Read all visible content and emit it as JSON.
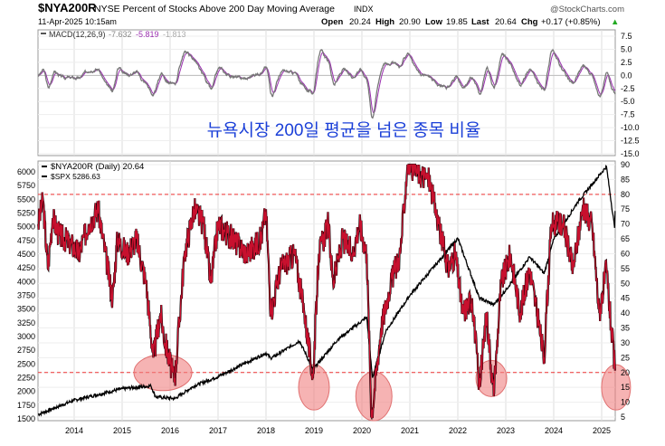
{
  "header": {
    "symbol": "$NYA200R",
    "description": "NYSE Percent of Stocks Above 200 Day Moving Average",
    "exchange": "INDX",
    "brand": "@StockCharts.com",
    "date": "11-Apr-2025 10:15am",
    "open_label": "Open",
    "open": "20.24",
    "high_label": "High",
    "high": "20.90",
    "low_label": "Low",
    "low": "19.85",
    "last_label": "Last",
    "last": "20.64",
    "chg_label": "Chg",
    "chg": "+0.17 (+0.85%)"
  },
  "annotation": "뉴욕시장 200일 평균을 넘은 종목 비율",
  "colors": {
    "nya": "#c8102e",
    "spx": "#000000",
    "macd": "#777777",
    "signal": "#9b30b0",
    "highlight": "#f08080"
  },
  "chart_data": [
    {
      "type": "line",
      "title": "MACD(12,26,9)",
      "legend": {
        "label": "MACD(12,26,9)",
        "macd": "-7.632",
        "signal": "-5.819",
        "hist": "-1.813"
      },
      "ylim": [
        -15,
        7.5
      ],
      "yticks": [
        "7.5",
        "5.0",
        "2.5",
        "0.0",
        "-2.5",
        "-5.0",
        "-7.5",
        "-10.0",
        "-12.5",
        "-15.0"
      ]
    },
    {
      "type": "line",
      "legend": [
        "$NYA200R (Daily) 20.64",
        "$SPX 5286.63"
      ],
      "xticks": [
        "2014",
        "2015",
        "2016",
        "2017",
        "2018",
        "2019",
        "2020",
        "2021",
        "2022",
        "2023",
        "2024",
        "2025"
      ],
      "left_ylim": [
        1500,
        6000
      ],
      "left_yticks": [
        "6000",
        "5750",
        "5500",
        "5250",
        "5000",
        "4750",
        "4500",
        "4250",
        "4000",
        "3750",
        "3500",
        "3250",
        "3000",
        "2750",
        "2500",
        "2250",
        "2000",
        "1750",
        "1500"
      ],
      "right_ylim": [
        5,
        90
      ],
      "right_yticks": [
        "90",
        "85",
        "80",
        "75",
        "70",
        "65",
        "60",
        "55",
        "50",
        "45",
        "40",
        "35",
        "30",
        "25",
        "20",
        "15",
        "10",
        "5"
      ],
      "reference_lines": [
        80,
        20
      ],
      "series": [
        {
          "name": "$NYA200R",
          "x": [
            2013.25,
            2013.35,
            2013.45,
            2013.55,
            2013.7,
            2013.9,
            2014.1,
            2014.3,
            2014.5,
            2014.8,
            2014.9,
            2015.1,
            2015.3,
            2015.5,
            2015.65,
            2015.8,
            2015.9,
            2016.05,
            2016.1,
            2016.3,
            2016.5,
            2016.7,
            2016.85,
            2017.0,
            2017.3,
            2017.6,
            2017.9,
            2018.0,
            2018.1,
            2018.3,
            2018.6,
            2018.8,
            2018.98,
            2019.1,
            2019.3,
            2019.4,
            2019.6,
            2019.8,
            2019.95,
            2020.1,
            2020.2,
            2020.4,
            2020.6,
            2020.8,
            2020.95,
            2021.2,
            2021.4,
            2021.6,
            2021.8,
            2021.95,
            2022.1,
            2022.3,
            2022.45,
            2022.6,
            2022.75,
            2022.9,
            2023.1,
            2023.3,
            2023.5,
            2023.8,
            2023.95,
            2024.2,
            2024.4,
            2024.6,
            2024.8,
            2024.95,
            2025.1,
            2025.2,
            2025.28
          ],
          "values": [
            70,
            78,
            55,
            72,
            66,
            64,
            60,
            70,
            75,
            45,
            65,
            60,
            65,
            50,
            25,
            40,
            30,
            20,
            18,
            60,
            75,
            70,
            50,
            70,
            65,
            60,
            65,
            75,
            40,
            55,
            60,
            40,
            18,
            60,
            70,
            50,
            65,
            60,
            70,
            60,
            5,
            35,
            50,
            60,
            90,
            87,
            85,
            70,
            55,
            60,
            40,
            45,
            15,
            40,
            12,
            50,
            60,
            40,
            55,
            25,
            70,
            70,
            55,
            75,
            70,
            40,
            55,
            35,
            20.64
          ]
        },
        {
          "name": "$SPX",
          "x": [
            2013.25,
            2014.0,
            2015.0,
            2015.6,
            2015.7,
            2016.1,
            2016.5,
            2017.0,
            2018.0,
            2018.1,
            2018.7,
            2018.98,
            2019.5,
            2020.1,
            2020.22,
            2020.5,
            2021.0,
            2022.0,
            2022.45,
            2022.75,
            2023.0,
            2023.5,
            2023.8,
            2024.0,
            2024.5,
            2025.1,
            2025.27,
            2025.28
          ],
          "values": [
            1580,
            1840,
            2050,
            2100,
            1900,
            1870,
            2100,
            2270,
            2700,
            2600,
            2920,
            2400,
            2950,
            3350,
            2250,
            3100,
            3750,
            4790,
            3700,
            3580,
            3850,
            4450,
            4150,
            4770,
            5450,
            6100,
            4980,
            5286.63
          ]
        }
      ]
    }
  ]
}
